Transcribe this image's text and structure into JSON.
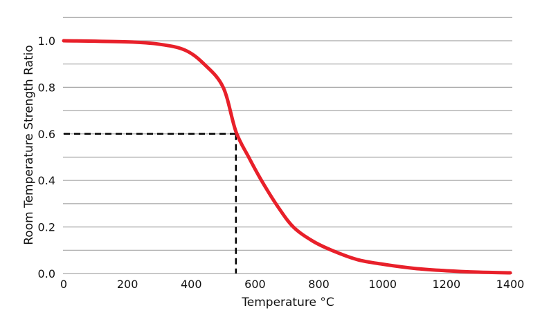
{
  "chart_data": {
    "type": "line",
    "title": "",
    "xlabel": "Temperature °C",
    "ylabel": "Room Temperature Strength Ratio",
    "xlim": [
      0,
      1400
    ],
    "ylim": [
      0,
      1.1
    ],
    "x_ticks": [
      "0",
      "200",
      "400",
      "600",
      "800",
      "1000",
      "1200",
      "1400"
    ],
    "y_ticks": [
      "0.0",
      "0.2",
      "0.4",
      "0.6",
      "0.8",
      "1.0"
    ],
    "grid": "horizontal every 0.1",
    "series": [
      {
        "color": "#e8202a",
        "x": [
          0,
          200,
          300,
          380,
          440,
          500,
          540,
          580,
          620,
          670,
          720,
          780,
          840,
          920,
          1000,
          1100,
          1200,
          1300,
          1400
        ],
        "y": [
          1.0,
          0.995,
          0.985,
          0.96,
          0.9,
          0.8,
          0.61,
          0.5,
          0.4,
          0.29,
          0.2,
          0.14,
          0.1,
          0.06,
          0.04,
          0.022,
          0.012,
          0.006,
          0.003
        ]
      }
    ],
    "annotations": [
      {
        "type": "dashed-reference",
        "x": 540,
        "y": 0.6,
        "color": "#000000"
      }
    ]
  }
}
